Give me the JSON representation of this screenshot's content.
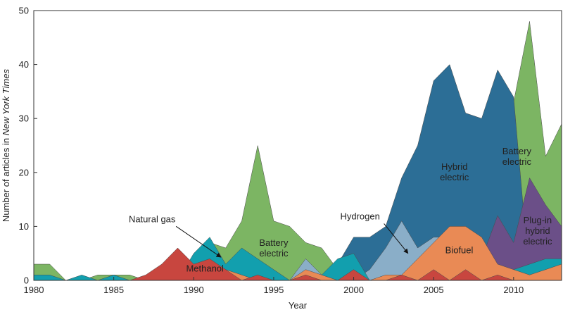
{
  "chart_data": {
    "type": "area",
    "title": "",
    "xlabel": "Year",
    "ylabel_prefix": "Number of articles in ",
    "ylabel_italic": "New York Times",
    "xlim": [
      1980,
      2013
    ],
    "ylim": [
      0,
      50
    ],
    "xticks": [
      1980,
      1985,
      1990,
      1995,
      2000,
      2005,
      2010
    ],
    "yticks": [
      0,
      10,
      20,
      30,
      40,
      50
    ],
    "series": [
      {
        "name": "Battery electric",
        "color": "#7cb563",
        "points": [
          [
            1980,
            3
          ],
          [
            1981,
            3
          ],
          [
            1982,
            0
          ],
          [
            1983,
            0
          ],
          [
            1984,
            1
          ],
          [
            1985,
            1
          ],
          [
            1986,
            1
          ],
          [
            1987,
            0
          ],
          [
            1988,
            0
          ],
          [
            1989,
            1
          ],
          [
            1990,
            3
          ],
          [
            1991,
            7
          ],
          [
            1992,
            6
          ],
          [
            1993,
            11
          ],
          [
            1994,
            25
          ],
          [
            1995,
            11
          ],
          [
            1996,
            10
          ],
          [
            1997,
            7
          ],
          [
            1998,
            6
          ],
          [
            1999,
            2
          ],
          [
            2000,
            3
          ],
          [
            2001,
            1
          ],
          [
            2002,
            2
          ],
          [
            2003,
            2
          ],
          [
            2004,
            2
          ],
          [
            2005,
            2
          ],
          [
            2006,
            2
          ],
          [
            2007,
            3
          ],
          [
            2008,
            6
          ],
          [
            2009,
            26
          ],
          [
            2010,
            33
          ],
          [
            2011,
            48
          ],
          [
            2012,
            23
          ],
          [
            2013,
            29
          ]
        ]
      },
      {
        "name": "Hybrid electric",
        "color": "#2c6e96",
        "points": [
          [
            1980,
            0
          ],
          [
            1981,
            0
          ],
          [
            1982,
            0
          ],
          [
            1983,
            0
          ],
          [
            1984,
            0
          ],
          [
            1985,
            0
          ],
          [
            1986,
            0
          ],
          [
            1987,
            0
          ],
          [
            1988,
            0
          ],
          [
            1989,
            0
          ],
          [
            1990,
            0
          ],
          [
            1991,
            0
          ],
          [
            1992,
            0
          ],
          [
            1993,
            0
          ],
          [
            1994,
            0
          ],
          [
            1995,
            0
          ],
          [
            1996,
            0
          ],
          [
            1997,
            0
          ],
          [
            1998,
            0
          ],
          [
            1999,
            3
          ],
          [
            2000,
            8
          ],
          [
            2001,
            8
          ],
          [
            2002,
            10
          ],
          [
            2003,
            19
          ],
          [
            2004,
            25
          ],
          [
            2005,
            37
          ],
          [
            2006,
            40
          ],
          [
            2007,
            31
          ],
          [
            2008,
            30
          ],
          [
            2009,
            39
          ],
          [
            2010,
            34
          ],
          [
            2011,
            0
          ],
          [
            2012,
            0
          ],
          [
            2013,
            0
          ]
        ]
      },
      {
        "name": "Hydrogen",
        "color": "#8aaec8",
        "points": [
          [
            1980,
            0
          ],
          [
            1981,
            0
          ],
          [
            1982,
            0
          ],
          [
            1983,
            0
          ],
          [
            1984,
            0
          ],
          [
            1985,
            0
          ],
          [
            1986,
            0
          ],
          [
            1987,
            0
          ],
          [
            1988,
            0
          ],
          [
            1989,
            0
          ],
          [
            1990,
            0
          ],
          [
            1991,
            0
          ],
          [
            1992,
            0
          ],
          [
            1993,
            0
          ],
          [
            1994,
            0
          ],
          [
            1995,
            0
          ],
          [
            1996,
            0
          ],
          [
            1997,
            4
          ],
          [
            1998,
            1
          ],
          [
            1999,
            0
          ],
          [
            2000,
            0
          ],
          [
            2001,
            2
          ],
          [
            2002,
            6
          ],
          [
            2003,
            11
          ],
          [
            2004,
            6
          ],
          [
            2005,
            8
          ],
          [
            2006,
            8
          ],
          [
            2007,
            9
          ],
          [
            2008,
            6
          ],
          [
            2009,
            4
          ],
          [
            2010,
            3
          ],
          [
            2011,
            2
          ],
          [
            2012,
            2
          ],
          [
            2013,
            3
          ]
        ]
      },
      {
        "name": "Plug-in hybrid electric",
        "color": "#6b4f88",
        "points": [
          [
            1980,
            0
          ],
          [
            1981,
            0
          ],
          [
            1982,
            0
          ],
          [
            1983,
            0
          ],
          [
            1984,
            0
          ],
          [
            1985,
            0
          ],
          [
            1986,
            0
          ],
          [
            1987,
            0
          ],
          [
            1988,
            0
          ],
          [
            1989,
            0
          ],
          [
            1990,
            0
          ],
          [
            1991,
            0
          ],
          [
            1992,
            0
          ],
          [
            1993,
            0
          ],
          [
            1994,
            0
          ],
          [
            1995,
            0
          ],
          [
            1996,
            0
          ],
          [
            1997,
            0
          ],
          [
            1998,
            0
          ],
          [
            1999,
            0
          ],
          [
            2000,
            0
          ],
          [
            2001,
            0
          ],
          [
            2002,
            0
          ],
          [
            2003,
            0
          ],
          [
            2004,
            0
          ],
          [
            2005,
            0
          ],
          [
            2006,
            0
          ],
          [
            2007,
            0
          ],
          [
            2008,
            4
          ],
          [
            2009,
            12
          ],
          [
            2010,
            7
          ],
          [
            2011,
            19
          ],
          [
            2012,
            14
          ],
          [
            2013,
            10
          ]
        ]
      },
      {
        "name": "Natural gas",
        "color": "#129fae",
        "points": [
          [
            1980,
            1
          ],
          [
            1981,
            1
          ],
          [
            1982,
            0
          ],
          [
            1983,
            1
          ],
          [
            1984,
            0
          ],
          [
            1985,
            1
          ],
          [
            1986,
            0
          ],
          [
            1987,
            0
          ],
          [
            1988,
            0
          ],
          [
            1989,
            0
          ],
          [
            1990,
            5
          ],
          [
            1991,
            8
          ],
          [
            1992,
            3
          ],
          [
            1993,
            6
          ],
          [
            1994,
            4
          ],
          [
            1995,
            2
          ],
          [
            1996,
            0
          ],
          [
            1997,
            1
          ],
          [
            1998,
            1
          ],
          [
            1999,
            4
          ],
          [
            2000,
            5
          ],
          [
            2001,
            0
          ],
          [
            2002,
            0
          ],
          [
            2003,
            0
          ],
          [
            2004,
            0
          ],
          [
            2005,
            0
          ],
          [
            2006,
            0
          ],
          [
            2007,
            0
          ],
          [
            2008,
            0
          ],
          [
            2009,
            1
          ],
          [
            2010,
            2
          ],
          [
            2011,
            3
          ],
          [
            2012,
            4
          ],
          [
            2013,
            4
          ]
        ]
      },
      {
        "name": "Biofuel",
        "color": "#e98a55",
        "points": [
          [
            1980,
            0
          ],
          [
            1981,
            0
          ],
          [
            1982,
            0
          ],
          [
            1983,
            0
          ],
          [
            1984,
            0
          ],
          [
            1985,
            0
          ],
          [
            1986,
            0
          ],
          [
            1987,
            0
          ],
          [
            1988,
            0
          ],
          [
            1989,
            0
          ],
          [
            1990,
            0
          ],
          [
            1991,
            0
          ],
          [
            1992,
            2
          ],
          [
            1993,
            1
          ],
          [
            1994,
            0
          ],
          [
            1995,
            0
          ],
          [
            1996,
            0
          ],
          [
            1997,
            2
          ],
          [
            1998,
            1
          ],
          [
            1999,
            0
          ],
          [
            2000,
            0
          ],
          [
            2001,
            0
          ],
          [
            2002,
            1
          ],
          [
            2003,
            1
          ],
          [
            2004,
            4
          ],
          [
            2005,
            7
          ],
          [
            2006,
            10
          ],
          [
            2007,
            10
          ],
          [
            2008,
            8
          ],
          [
            2009,
            3
          ],
          [
            2010,
            2
          ],
          [
            2011,
            1
          ],
          [
            2012,
            2
          ],
          [
            2013,
            3
          ]
        ]
      },
      {
        "name": "Methanol",
        "color": "#c8463f",
        "points": [
          [
            1980,
            0
          ],
          [
            1981,
            0
          ],
          [
            1982,
            0
          ],
          [
            1983,
            0
          ],
          [
            1984,
            0
          ],
          [
            1985,
            0
          ],
          [
            1986,
            0
          ],
          [
            1987,
            1
          ],
          [
            1988,
            3
          ],
          [
            1989,
            6
          ],
          [
            1990,
            3
          ],
          [
            1991,
            4
          ],
          [
            1992,
            2
          ],
          [
            1993,
            0
          ],
          [
            1994,
            1
          ],
          [
            1995,
            0
          ],
          [
            1996,
            0
          ],
          [
            1997,
            1
          ],
          [
            1998,
            0
          ],
          [
            1999,
            0
          ],
          [
            2000,
            2
          ],
          [
            2001,
            0
          ],
          [
            2002,
            0
          ],
          [
            2003,
            1
          ],
          [
            2004,
            0
          ],
          [
            2005,
            2
          ],
          [
            2006,
            0
          ],
          [
            2007,
            2
          ],
          [
            2008,
            0
          ],
          [
            2009,
            1
          ],
          [
            2010,
            0
          ],
          [
            2011,
            0
          ],
          [
            2012,
            0
          ],
          [
            2013,
            0
          ]
        ]
      }
    ],
    "annotations": [
      {
        "id": "battery-1994",
        "lines": [
          "Battery",
          "electric"
        ],
        "x": 1995,
        "y": 6.4
      },
      {
        "id": "battery-2011",
        "lines": [
          "Battery",
          "electric"
        ],
        "x": 2010.2,
        "y": 23.4
      },
      {
        "id": "hybrid",
        "lines": [
          "Hybrid",
          "electric"
        ],
        "x": 2006.3,
        "y": 20.5
      },
      {
        "id": "plugin",
        "lines": [
          "Plug-in",
          "hybrid",
          "electric"
        ],
        "x": 2011.5,
        "y": 10.6
      },
      {
        "id": "biofuel",
        "lines": [
          "Biofuel"
        ],
        "x": 2006.6,
        "y": 5.0
      },
      {
        "id": "methanol",
        "lines": [
          "Methanol"
        ],
        "x": 1990.7,
        "y": 1.6
      },
      {
        "id": "natural-gas",
        "lines": [
          "Natural gas"
        ],
        "x": 1987.4,
        "y": 10.8,
        "anchor": "middle",
        "arrow_to": [
          1991.7,
          4.3
        ]
      },
      {
        "id": "hydrogen",
        "lines": [
          "Hydrogen"
        ],
        "x": 2000.4,
        "y": 11.3,
        "anchor": "middle",
        "arrow_to": [
          2003.4,
          5.0
        ]
      }
    ]
  }
}
